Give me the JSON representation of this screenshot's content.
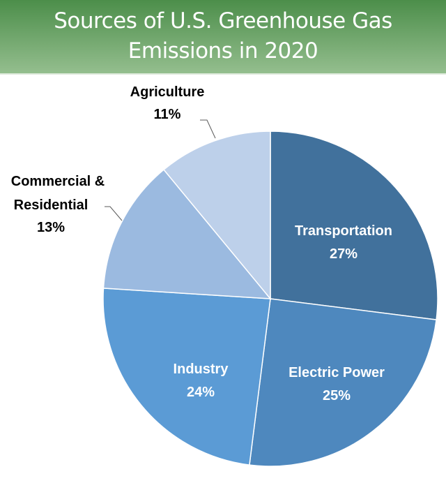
{
  "chart_data": {
    "type": "pie",
    "title": "Sources of U.S. Greenhouse Gas Emissions in 2020",
    "start": "top",
    "direction": "clockwise",
    "slices": [
      {
        "label": "Transportation",
        "value": 27,
        "value_label": "27%",
        "color": "#41719c"
      },
      {
        "label": "Electric Power",
        "value": 25,
        "value_label": "25%",
        "color": "#4e88be"
      },
      {
        "label": "Industry",
        "value": 24,
        "value_label": "24%",
        "color": "#5b9bd5"
      },
      {
        "label": "Commercial & Residential",
        "value": 13,
        "value_label": "13%",
        "color": "#9bbae0"
      },
      {
        "label": "Agriculture",
        "value": 11,
        "value_label": "11%",
        "color": "#bdd0ea"
      }
    ],
    "header_color": "#4c8e4a"
  }
}
